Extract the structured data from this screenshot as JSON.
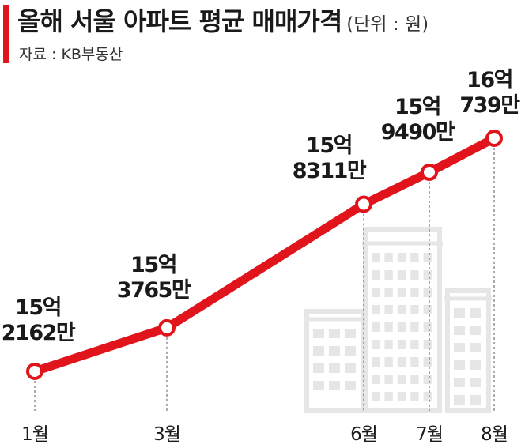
{
  "header": {
    "title": "올해 서울 아파트 평균 매매가격",
    "unit": "(단위 : 원)",
    "source": "자료 : KB부동산"
  },
  "colors": {
    "accent": "#e1141c",
    "line": "#e1141c",
    "building": "#e6e6e6"
  },
  "chart_data": {
    "type": "line",
    "title": "올해 서울 아파트 평균 매매가격",
    "unit": "(단위 : 원)",
    "x": [
      "1월",
      "3월",
      "6월",
      "7월",
      "8월"
    ],
    "values": [
      1521620000,
      1537650000,
      1583110000,
      1594900000,
      1607390000
    ],
    "data_labels": [
      [
        "15억",
        "2162만"
      ],
      [
        "15억",
        "3765만"
      ],
      [
        "15억",
        "8311만"
      ],
      [
        "15억",
        "9490만"
      ],
      [
        "16억",
        "739만"
      ]
    ],
    "grid": false,
    "legend": "none"
  }
}
